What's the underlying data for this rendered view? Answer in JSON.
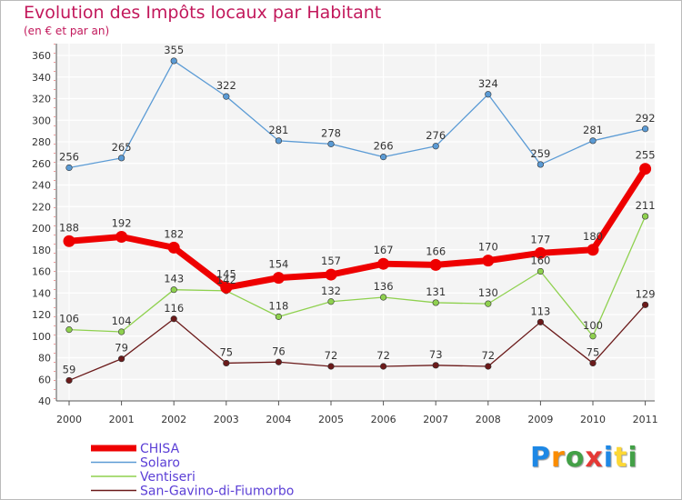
{
  "chart_data": {
    "type": "line",
    "title": "Evolution des Impôts locaux par Habitant",
    "subtitle": "(en € et par an)",
    "xlabel": "",
    "ylabel": "",
    "x": [
      "2000",
      "2001",
      "2002",
      "2003",
      "2004",
      "2005",
      "2006",
      "2007",
      "2008",
      "2009",
      "2010",
      "2011"
    ],
    "ylim": [
      40,
      360
    ],
    "yticks": [
      40,
      60,
      80,
      100,
      120,
      140,
      160,
      180,
      200,
      220,
      240,
      260,
      280,
      300,
      320,
      340,
      360
    ],
    "grid": true,
    "legend": "bottom-left",
    "series": [
      {
        "name": "CHISA",
        "color": "#ee0000",
        "values": [
          188,
          192,
          182,
          145,
          154,
          157,
          167,
          166,
          170,
          177,
          180,
          255
        ]
      },
      {
        "name": "Solaro",
        "color": "#5b9bd5",
        "values": [
          256,
          265,
          355,
          322,
          281,
          278,
          266,
          276,
          324,
          259,
          281,
          292
        ]
      },
      {
        "name": "Ventiseri",
        "color": "#8fd14f",
        "values": [
          106,
          104,
          143,
          142,
          118,
          132,
          136,
          131,
          130,
          160,
          100,
          211
        ]
      },
      {
        "name": "San-Gavino-di-Fiumorbo",
        "color": "#6b1a1a",
        "values": [
          59,
          79,
          116,
          75,
          76,
          72,
          72,
          73,
          72,
          113,
          75,
          129
        ]
      }
    ]
  },
  "brand": {
    "letters": [
      "P",
      "r",
      "o",
      "x",
      "i",
      "t",
      "i"
    ],
    "colors": [
      "#1e88e5",
      "#fb8c00",
      "#43a047",
      "#e53935",
      "#1e88e5",
      "#fdd835",
      "#43a047"
    ]
  }
}
